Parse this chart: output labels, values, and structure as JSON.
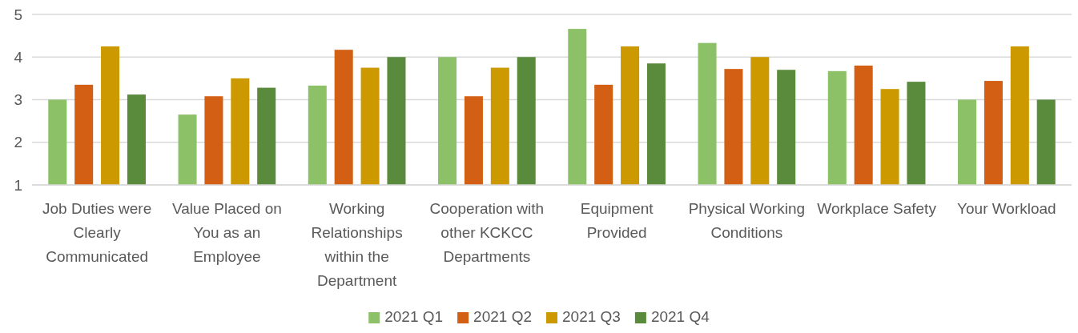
{
  "chart_data": {
    "type": "bar",
    "categories": [
      "Job Duties were Clearly Communicated",
      "Value Placed on You as an Employee",
      "Working Relationships within the Department",
      "Cooperation with other KCKCC Departments",
      "Equipment Provided",
      "Physical Working Conditions",
      "Workplace Safety",
      "Your Workload"
    ],
    "series": [
      {
        "name": "2021 Q1",
        "color": "#8cc168",
        "values": [
          3.0,
          2.65,
          3.33,
          4.0,
          4.66,
          4.33,
          3.67,
          3.0
        ]
      },
      {
        "name": "2021 Q2",
        "color": "#d35f14",
        "values": [
          3.35,
          3.08,
          4.17,
          3.08,
          3.35,
          3.72,
          3.8,
          3.44
        ]
      },
      {
        "name": "2021 Q3",
        "color": "#cc9900",
        "values": [
          4.25,
          3.5,
          3.75,
          3.75,
          4.25,
          4.0,
          3.25,
          4.25
        ]
      },
      {
        "name": "2021 Q4",
        "color": "#5a8a3c",
        "values": [
          3.12,
          3.28,
          4.0,
          4.0,
          3.85,
          3.7,
          3.42,
          3.0
        ]
      }
    ],
    "ylim": [
      1,
      5
    ],
    "yticks": [
      1,
      2,
      3,
      4,
      5
    ],
    "grid": "y",
    "legend": "bottom"
  }
}
